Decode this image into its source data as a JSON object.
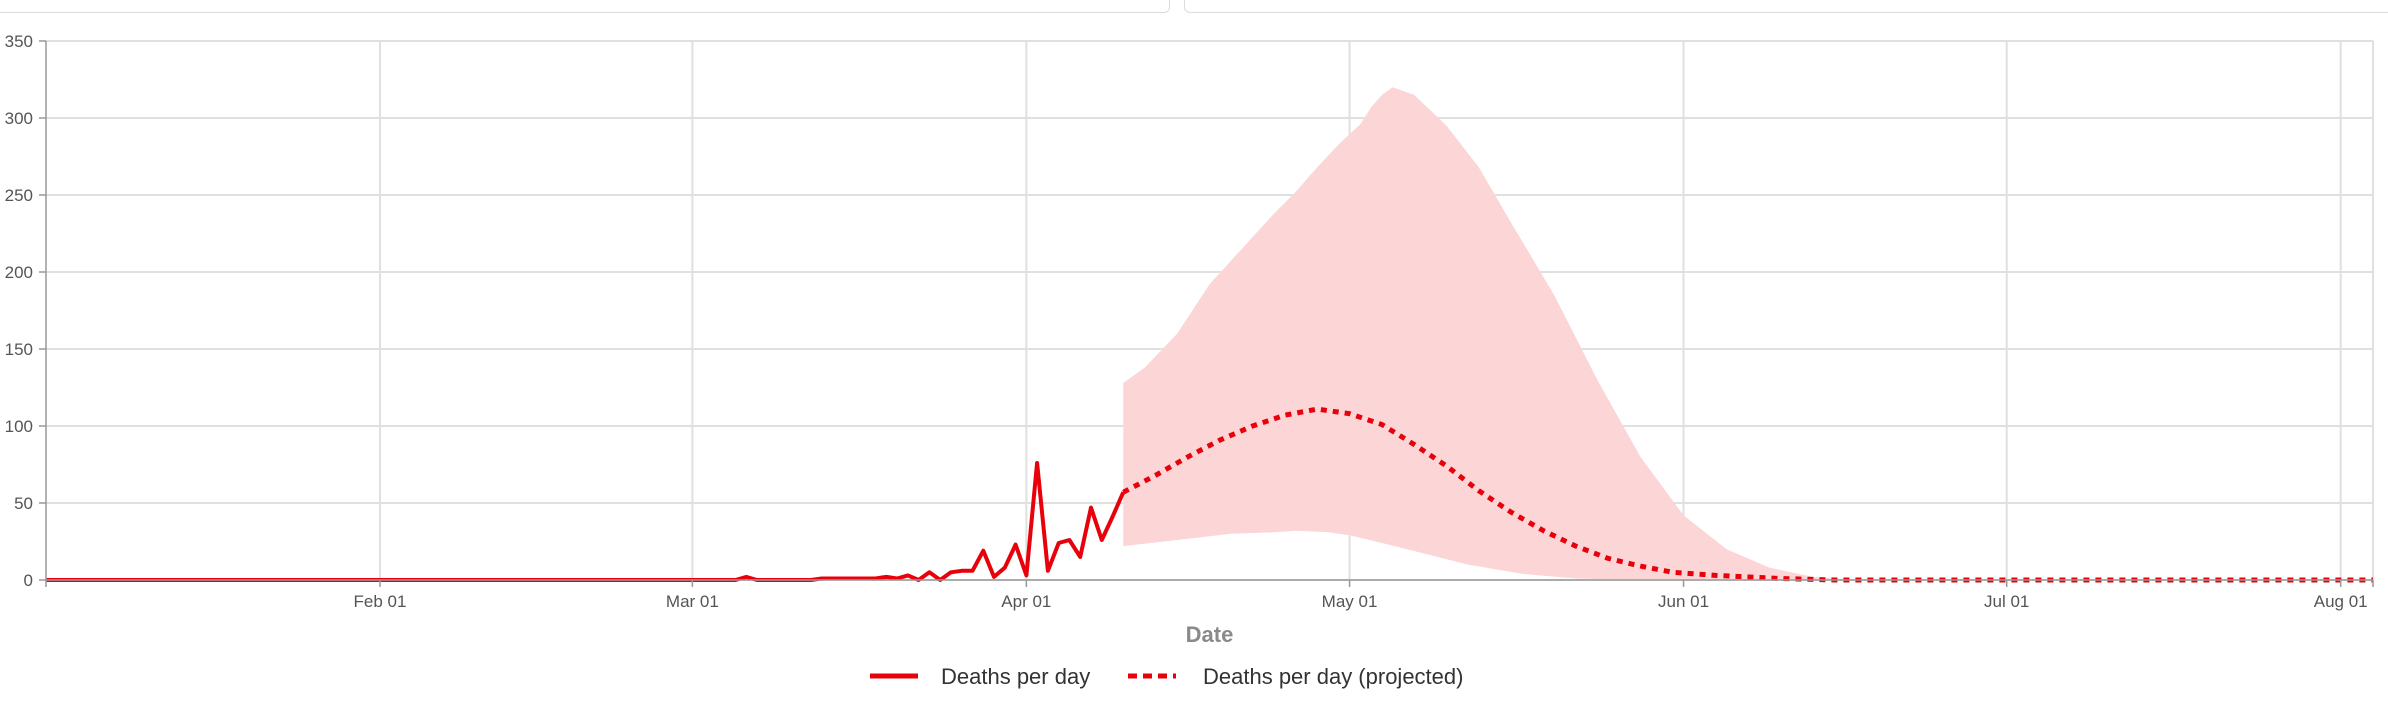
{
  "chart_data": {
    "type": "line",
    "xlabel": "Date",
    "ylabel": "",
    "ylim": [
      0,
      350
    ],
    "yticks": [
      0,
      50,
      100,
      150,
      200,
      250,
      300,
      350
    ],
    "x_range": [
      "2020-01-01",
      "2020-08-04"
    ],
    "xticks": [
      {
        "date": "2020-02-01",
        "label": "Feb 01"
      },
      {
        "date": "2020-03-01",
        "label": "Mar 01"
      },
      {
        "date": "2020-04-01",
        "label": "Apr 01"
      },
      {
        "date": "2020-05-01",
        "label": "May 01"
      },
      {
        "date": "2020-06-01",
        "label": "Jun 01"
      },
      {
        "date": "2020-07-01",
        "label": "Jul 01"
      },
      {
        "date": "2020-08-01",
        "label": "Aug 01"
      }
    ],
    "grid": true,
    "legend_position": "bottom",
    "colors": {
      "line": "#e8000b",
      "band": "#fcd5d7",
      "grid": "#e0e0e0",
      "axis": "#999999"
    },
    "series": [
      {
        "name": "Deaths per day",
        "style": "solid",
        "points": [
          [
            "2020-01-01",
            0
          ],
          [
            "2020-03-05",
            0
          ],
          [
            "2020-03-06",
            2
          ],
          [
            "2020-03-07",
            0
          ],
          [
            "2020-03-12",
            0
          ],
          [
            "2020-03-13",
            1
          ],
          [
            "2020-03-18",
            1
          ],
          [
            "2020-03-19",
            2
          ],
          [
            "2020-03-20",
            1
          ],
          [
            "2020-03-21",
            3
          ],
          [
            "2020-03-22",
            0
          ],
          [
            "2020-03-23",
            5
          ],
          [
            "2020-03-24",
            0
          ],
          [
            "2020-03-25",
            5
          ],
          [
            "2020-03-26",
            6
          ],
          [
            "2020-03-27",
            6
          ],
          [
            "2020-03-28",
            19
          ],
          [
            "2020-03-29",
            2
          ],
          [
            "2020-03-30",
            8
          ],
          [
            "2020-03-31",
            23
          ],
          [
            "2020-04-01",
            3
          ],
          [
            "2020-04-02",
            76
          ],
          [
            "2020-04-03",
            6
          ],
          [
            "2020-04-04",
            24
          ],
          [
            "2020-04-05",
            26
          ],
          [
            "2020-04-06",
            15
          ],
          [
            "2020-04-07",
            47
          ],
          [
            "2020-04-08",
            26
          ],
          [
            "2020-04-09",
            41
          ],
          [
            "2020-04-10",
            57
          ]
        ]
      },
      {
        "name": "Deaths per day (projected)",
        "style": "dashed",
        "points": [
          [
            "2020-04-10",
            57
          ],
          [
            "2020-04-13",
            68
          ],
          [
            "2020-04-16",
            80
          ],
          [
            "2020-04-19",
            91
          ],
          [
            "2020-04-22",
            100
          ],
          [
            "2020-04-25",
            107
          ],
          [
            "2020-04-28",
            111
          ],
          [
            "2020-05-01",
            108
          ],
          [
            "2020-05-04",
            101
          ],
          [
            "2020-05-07",
            88
          ],
          [
            "2020-05-10",
            74
          ],
          [
            "2020-05-13",
            58
          ],
          [
            "2020-05-16",
            44
          ],
          [
            "2020-05-19",
            32
          ],
          [
            "2020-05-22",
            22
          ],
          [
            "2020-05-25",
            14
          ],
          [
            "2020-05-28",
            9
          ],
          [
            "2020-05-31",
            5
          ],
          [
            "2020-06-04",
            3
          ],
          [
            "2020-06-10",
            1
          ],
          [
            "2020-06-15",
            0
          ],
          [
            "2020-08-04",
            0
          ]
        ]
      }
    ],
    "band": {
      "upper": [
        [
          "2020-04-10",
          22
        ],
        [
          "2020-04-10",
          128
        ],
        [
          "2020-04-12",
          138
        ],
        [
          "2020-04-15",
          160
        ],
        [
          "2020-04-18",
          192
        ],
        [
          "2020-04-21",
          215
        ],
        [
          "2020-04-24",
          238
        ],
        [
          "2020-04-26",
          252
        ],
        [
          "2020-04-28",
          268
        ],
        [
          "2020-04-30",
          283
        ],
        [
          "2020-05-02",
          296
        ],
        [
          "2020-05-03",
          307
        ],
        [
          "2020-05-04",
          315
        ],
        [
          "2020-05-05",
          320
        ],
        [
          "2020-05-07",
          315
        ],
        [
          "2020-05-10",
          295
        ],
        [
          "2020-05-13",
          268
        ],
        [
          "2020-05-16",
          232
        ],
        [
          "2020-05-20",
          185
        ],
        [
          "2020-05-24",
          130
        ],
        [
          "2020-05-28",
          80
        ],
        [
          "2020-06-01",
          42
        ],
        [
          "2020-06-05",
          20
        ],
        [
          "2020-06-09",
          8
        ],
        [
          "2020-06-13",
          2
        ],
        [
          "2020-06-17",
          0
        ]
      ],
      "lower": [
        [
          "2020-04-10",
          22
        ],
        [
          "2020-04-15",
          26
        ],
        [
          "2020-04-20",
          30
        ],
        [
          "2020-04-24",
          31
        ],
        [
          "2020-04-26",
          32
        ],
        [
          "2020-04-29",
          31
        ],
        [
          "2020-05-01",
          29
        ],
        [
          "2020-05-04",
          24
        ],
        [
          "2020-05-08",
          17
        ],
        [
          "2020-05-12",
          10
        ],
        [
          "2020-05-17",
          4
        ],
        [
          "2020-05-22",
          1
        ],
        [
          "2020-05-28",
          0
        ],
        [
          "2020-06-17",
          0
        ]
      ]
    }
  }
}
